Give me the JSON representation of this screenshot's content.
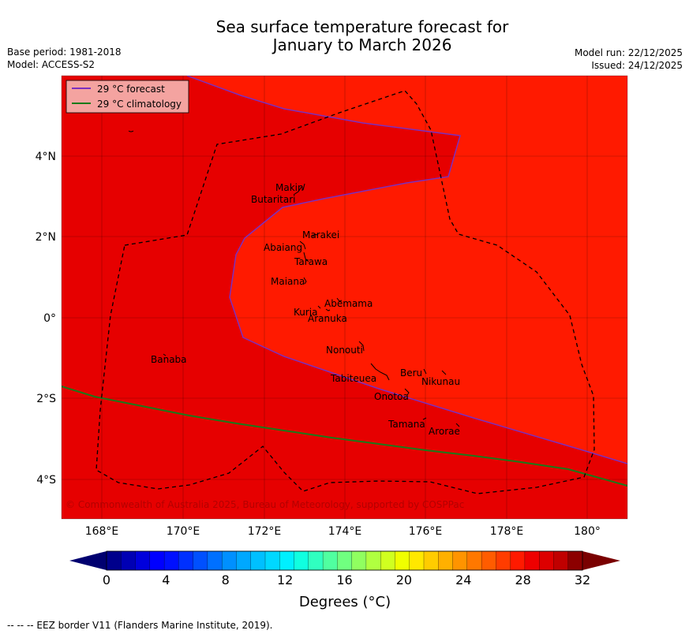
{
  "title_line1": "Sea surface temperature forecast for",
  "title_line2": "January to March 2026",
  "base_period": "Base period: 1981-2018",
  "model": "Model: ACCESS-S2",
  "model_run": "Model run: 22/12/2025",
  "issued": "Issued: 24/12/2025",
  "legend": {
    "forecast": "29 °C  forecast",
    "climatology": "29 °C  climatology",
    "forecast_color": "#7b2fbf",
    "climatology_color": "#1a7a1a"
  },
  "colors": {
    "warm_region": "#ff1a00",
    "cool_region": "#e60000"
  },
  "lon_ticks": [
    "168°E",
    "170°E",
    "172°E",
    "174°E",
    "176°E",
    "178°E",
    "180°"
  ],
  "lat_ticks": [
    "4°N",
    "2°N",
    "0°",
    "2°S",
    "4°S"
  ],
  "places": {
    "makin": "Makin",
    "butaritari": "Butaritari",
    "marakei": "Marakei",
    "abaiang": "Abaiang",
    "tarawa": "Tarawa",
    "maiana": "Maiana",
    "abemama": "Abemama",
    "kuria": "Kuria",
    "aranuka": "Aranuka",
    "nonouti": "Nonouti",
    "banaba": "Banaba",
    "beru": "Beru",
    "nikunau": "Nikunau",
    "tabiteuea": "Tabiteuea",
    "onotoa": "Onotoa",
    "tamana": "Tamana",
    "arorae": "Arorae"
  },
  "copyright": "© Commonwealth of Australia 2025, Bureau of Meteorology, supported by COSPPac",
  "colorbar": {
    "ticks": [
      "0",
      "4",
      "8",
      "12",
      "16",
      "20",
      "24",
      "28",
      "32"
    ],
    "label": "Degrees (°C)",
    "min_value": 0,
    "max_value": 32,
    "step": 1,
    "colors": [
      "#00008c",
      "#0000b4",
      "#0000dc",
      "#0000ff",
      "#0010ff",
      "#0030ff",
      "#0050ff",
      "#0070ff",
      "#0090ff",
      "#00a8ff",
      "#00c0ff",
      "#00d8ff",
      "#00f0ff",
      "#10ffe0",
      "#30ffc0",
      "#50ffa0",
      "#70ff80",
      "#90ff60",
      "#b0ff40",
      "#d0ff20",
      "#f0ff00",
      "#ffe800",
      "#ffcc00",
      "#ffb000",
      "#ff9400",
      "#ff7800",
      "#ff5c00",
      "#ff3c00",
      "#ff1a00",
      "#ee0000",
      "#dd0000",
      "#c00000",
      "#8c0000"
    ],
    "under_color": "#000070",
    "over_color": "#7a0000"
  },
  "footer": "--  --  -- EEZ border V11 (Flanders Marine Institute, 2019)."
}
